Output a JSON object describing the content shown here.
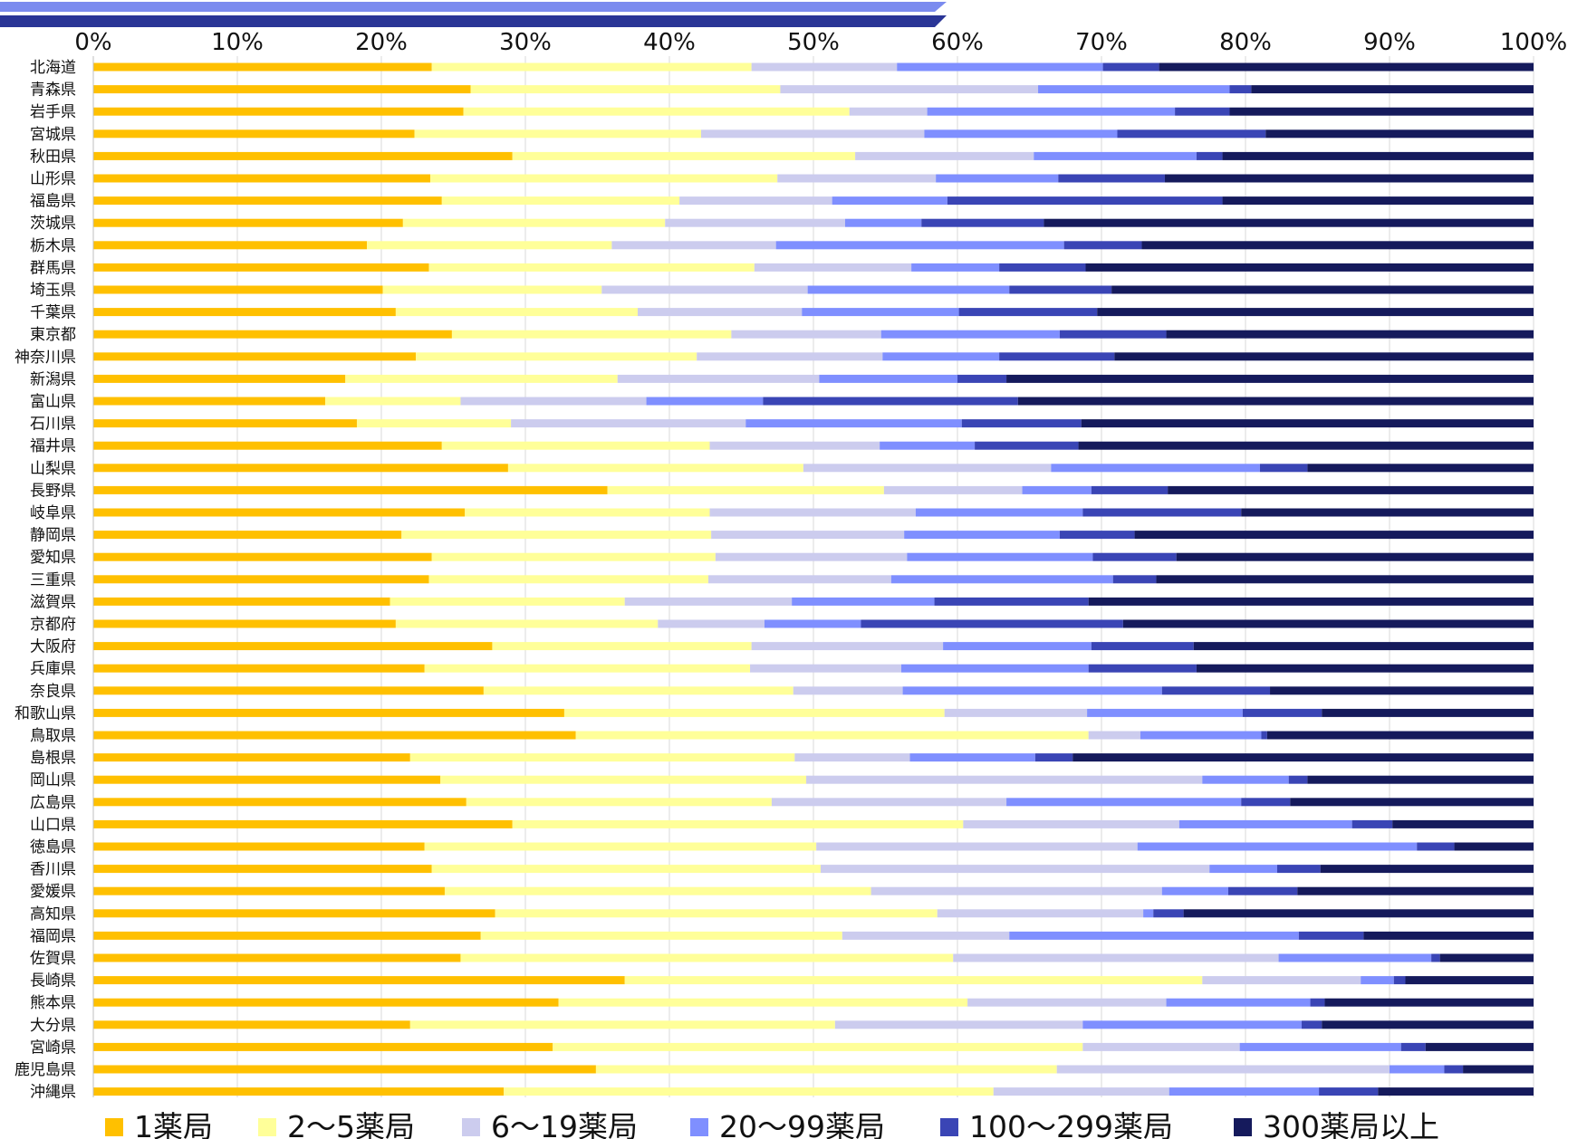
{
  "chart_data": {
    "type": "bar",
    "orientation": "horizontal",
    "stacked": true,
    "percent_stacked": true,
    "title": "",
    "xlabel": "",
    "ylabel": "",
    "xlim": [
      0,
      100
    ],
    "x_ticks": [
      "0%",
      "10%",
      "20%",
      "30%",
      "40%",
      "50%",
      "60%",
      "70%",
      "80%",
      "90%",
      "100%"
    ],
    "grid": "vertical",
    "legend_position": "bottom",
    "categories": [
      "北海道",
      "青森県",
      "岩手県",
      "宮城県",
      "秋田県",
      "山形県",
      "福島県",
      "茨城県",
      "栃木県",
      "群馬県",
      "埼玉県",
      "千葉県",
      "東京都",
      "神奈川県",
      "新潟県",
      "富山県",
      "石川県",
      "福井県",
      "山梨県",
      "長野県",
      "岐阜県",
      "静岡県",
      "愛知県",
      "三重県",
      "滋賀県",
      "京都府",
      "大阪府",
      "兵庫県",
      "奈良県",
      "和歌山県",
      "鳥取県",
      "島根県",
      "岡山県",
      "広島県",
      "山口県",
      "徳島県",
      "香川県",
      "愛媛県",
      "高知県",
      "福岡県",
      "佐賀県",
      "長崎県",
      "熊本県",
      "大分県",
      "宮崎県",
      "鹿児島県",
      "沖縄県"
    ],
    "series": [
      {
        "name": "1薬局",
        "color": "#FFC000",
        "values": [
          23.5,
          26.2,
          25.7,
          22.3,
          29.1,
          23.4,
          24.2,
          21.5,
          19.0,
          23.3,
          20.1,
          21.0,
          24.9,
          22.4,
          17.5,
          16.1,
          18.3,
          24.2,
          28.8,
          35.7,
          25.8,
          21.4,
          23.5,
          23.3,
          20.6,
          21.0,
          27.7,
          23.0,
          27.1,
          32.7,
          33.5,
          22.0,
          24.1,
          25.9,
          29.1,
          23.0,
          23.5,
          24.4,
          27.9,
          26.9,
          25.5,
          36.9,
          32.3,
          22.0,
          31.9,
          34.9,
          28.5
        ]
      },
      {
        "name": "2～5薬局",
        "color": "#FFFF99",
        "values": [
          22.2,
          21.5,
          26.8,
          19.9,
          23.8,
          24.1,
          16.5,
          18.2,
          17.0,
          22.6,
          15.2,
          16.8,
          19.4,
          19.5,
          18.9,
          9.4,
          10.7,
          18.6,
          20.5,
          19.2,
          17.0,
          21.5,
          19.7,
          19.4,
          16.3,
          18.2,
          18.0,
          22.6,
          21.5,
          26.4,
          35.6,
          26.7,
          25.4,
          21.2,
          31.3,
          27.2,
          27.0,
          29.6,
          30.7,
          25.1,
          34.2,
          40.1,
          28.4,
          29.5,
          36.8,
          32.0,
          34.0
        ]
      },
      {
        "name": "6～19薬局",
        "color": "#CCCCEE",
        "values": [
          10.1,
          17.9,
          5.4,
          15.5,
          12.4,
          11.0,
          10.6,
          12.5,
          11.4,
          10.9,
          14.3,
          11.4,
          10.4,
          12.9,
          14.0,
          12.9,
          16.3,
          11.8,
          17.2,
          9.6,
          14.3,
          13.4,
          13.3,
          12.7,
          11.6,
          7.4,
          13.3,
          10.5,
          7.6,
          9.9,
          3.6,
          8.0,
          27.5,
          16.3,
          15.0,
          22.3,
          27.0,
          20.2,
          14.3,
          11.6,
          22.6,
          11.0,
          13.8,
          17.2,
          10.9,
          23.1,
          12.2
        ]
      },
      {
        "name": "20～99薬局",
        "color": "#7F8FFF",
        "values": [
          14.3,
          13.3,
          17.2,
          13.4,
          11.3,
          8.5,
          8.0,
          5.3,
          20.0,
          6.1,
          14.0,
          10.9,
          12.4,
          8.1,
          9.6,
          8.1,
          15.0,
          6.6,
          14.5,
          4.8,
          11.6,
          10.8,
          12.9,
          15.4,
          9.9,
          6.7,
          10.3,
          13.0,
          18.0,
          10.8,
          8.4,
          8.7,
          6.0,
          16.3,
          12.0,
          19.4,
          4.7,
          4.6,
          0.7,
          20.1,
          10.6,
          2.3,
          10.0,
          15.2,
          11.2,
          3.8,
          10.4
        ]
      },
      {
        "name": "100～299薬局",
        "color": "#3A45B5",
        "values": [
          3.9,
          1.5,
          3.8,
          10.3,
          1.8,
          7.4,
          19.1,
          8.5,
          5.4,
          6.0,
          7.1,
          9.6,
          7.4,
          8.0,
          3.4,
          17.7,
          8.3,
          7.2,
          3.3,
          5.3,
          11.0,
          5.2,
          5.8,
          3.0,
          10.7,
          18.2,
          7.1,
          7.5,
          7.5,
          5.5,
          0.4,
          2.6,
          1.3,
          3.4,
          2.8,
          2.6,
          3.0,
          4.8,
          2.1,
          4.5,
          0.6,
          0.8,
          1.0,
          1.4,
          1.7,
          1.3,
          4.1
        ]
      },
      {
        "name": "300薬局以上",
        "color": "#151A5C",
        "values": [
          26.0,
          19.6,
          21.1,
          18.6,
          21.6,
          25.6,
          21.6,
          34.0,
          27.2,
          31.1,
          29.3,
          30.3,
          25.5,
          29.1,
          36.6,
          35.8,
          31.4,
          31.6,
          15.7,
          25.4,
          20.3,
          27.7,
          24.8,
          26.2,
          30.9,
          28.5,
          23.6,
          23.4,
          18.3,
          14.7,
          18.5,
          32.0,
          15.7,
          16.9,
          9.8,
          5.5,
          14.8,
          16.4,
          24.3,
          11.8,
          6.5,
          8.9,
          14.5,
          14.7,
          7.5,
          4.9,
          10.8
        ]
      }
    ]
  }
}
